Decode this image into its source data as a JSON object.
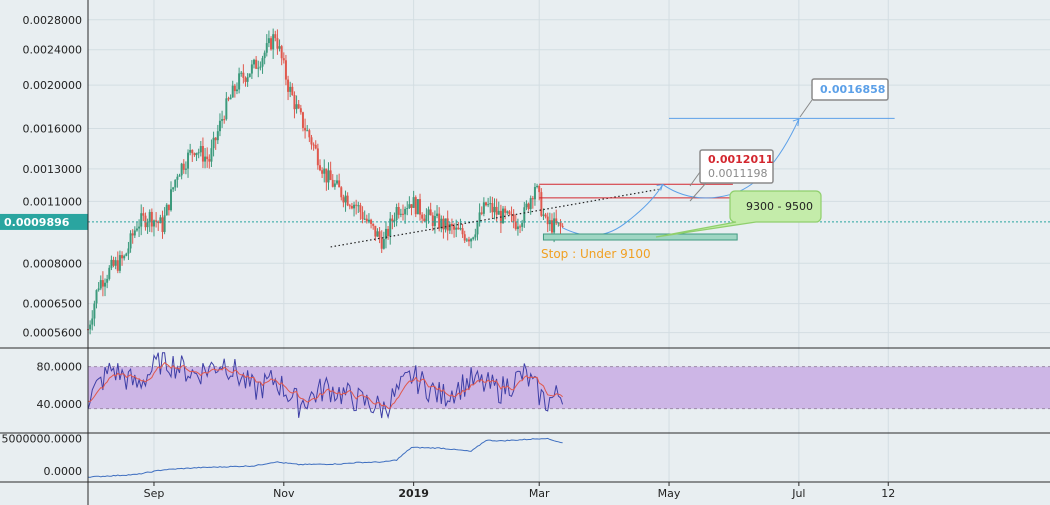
{
  "colors": {
    "background": "#e8eef1",
    "grid": "#d3dde2",
    "axis_text": "#222222",
    "candle_up": "#3c9a7c",
    "candle_down": "#e0584d",
    "price_line": "#2aa5a0",
    "resistance": "#d3272f",
    "target": "#5ca0e8",
    "zone_fill": "#9fd6c3",
    "zone_stroke": "#3f9a80",
    "callout_green": "#c4ecaa",
    "callout_green_stroke": "#8fcf6c",
    "stop_text": "#f0a023",
    "rsi_band": "#cdb6e6",
    "rsi_line": "#3e3fa6",
    "rsi_ma": "#e0584d",
    "obv_line": "#3f6fc0"
  },
  "chart_data": [
    {
      "type": "line",
      "panel": "price",
      "scale": "log",
      "y_ticks": [
        "0.0028000",
        "0.0024000",
        "0.0020000",
        "0.0016000",
        "0.0013000",
        "0.0011000",
        "0.0008000",
        "0.0006500",
        "0.0005600"
      ],
      "y_tick_values": [
        0.0028,
        0.0024,
        0.002,
        0.0016,
        0.0013,
        0.0011,
        0.0008,
        0.00065,
        0.00056
      ],
      "ylim": [
        0.00052,
        0.0031
      ],
      "x_labels": [
        "Sep",
        "Nov",
        "2019",
        "Mar",
        "May",
        "Jul",
        "12"
      ],
      "x_label_dates": [
        "2018-09-01",
        "2018-11-01",
        "2019-01-01",
        "2019-03-01",
        "2019-05-01",
        "2019-07-01",
        "2019-08-12"
      ],
      "xlim": [
        "2018-08-01",
        "2019-10-27"
      ],
      "series": [
        {
          "x": [
            "2018-08-01",
            "2018-08-06",
            "2018-08-12",
            "2018-08-18",
            "2018-08-24",
            "2018-08-30",
            "2018-09-05",
            "2018-09-12",
            "2018-09-20",
            "2018-09-27",
            "2018-10-04",
            "2018-10-11",
            "2018-10-18",
            "2018-10-24",
            "2018-10-28",
            "2018-11-03",
            "2018-11-08",
            "2018-11-14",
            "2018-11-21",
            "2018-11-28",
            "2018-12-05",
            "2018-12-12",
            "2018-12-18",
            "2018-12-24",
            "2018-12-31",
            "2019-01-07",
            "2019-01-14",
            "2019-01-21",
            "2019-01-28",
            "2019-02-04",
            "2019-02-11",
            "2019-02-18",
            "2019-02-22",
            "2019-02-27",
            "2019-03-04",
            "2019-03-08",
            "2019-03-12"
          ],
          "y": [
            0.00057,
            0.00072,
            0.00078,
            0.00082,
            0.00098,
            0.00102,
            0.00097,
            0.00128,
            0.00145,
            0.00136,
            0.00175,
            0.00205,
            0.0022,
            0.0024,
            0.0026,
            0.002,
            0.00172,
            0.0015,
            0.00125,
            0.00115,
            0.00108,
            0.00096,
            0.00089,
            0.00106,
            0.0011,
            0.00102,
            0.00098,
            0.00094,
            0.00092,
            0.00108,
            0.00102,
            0.00099,
            0.00103,
            0.0012,
            0.00098,
            0.00097,
            0.00096
          ]
        }
      ],
      "current_price": "0.0009896",
      "levels": [
        {
          "label": "0.0012011",
          "value": 0.0012011
        },
        {
          "label": "0.0011198",
          "value": 0.0011198
        },
        {
          "label": "0.0016858",
          "value": 0.0016858
        }
      ],
      "annotations": {
        "target_callout": "0.0016858",
        "resistance_callout_1": "0.0012011",
        "resistance_callout_2": "0.0011198",
        "zone_callout": "9300 - 9500",
        "stop_text": "Stop : Under 9100"
      }
    },
    {
      "type": "line",
      "panel": "rsi",
      "y_ticks": [
        "80.0000",
        "40.0000"
      ],
      "y_tick_values": [
        80,
        40
      ],
      "ylim": [
        10,
        100
      ],
      "band": [
        35,
        80
      ],
      "series": [
        {
          "x": [
            "2018-08-01",
            "2018-08-12",
            "2018-08-24",
            "2018-09-05",
            "2018-09-20",
            "2018-10-04",
            "2018-10-18",
            "2018-10-28",
            "2018-11-08",
            "2018-11-21",
            "2018-12-05",
            "2018-12-18",
            "2018-12-31",
            "2019-01-14",
            "2019-01-28",
            "2019-02-11",
            "2019-02-22",
            "2019-03-04",
            "2019-03-12"
          ],
          "y": [
            45,
            78,
            60,
            88,
            72,
            85,
            55,
            66,
            40,
            58,
            45,
            35,
            70,
            48,
            65,
            55,
            72,
            42,
            52
          ]
        }
      ]
    },
    {
      "type": "line",
      "panel": "volume_indicator",
      "y_ticks": [
        "5000000.0000",
        "0.0000"
      ],
      "y_tick_values": [
        5000000,
        0
      ],
      "ylim": [
        -1500000,
        5800000
      ],
      "series": [
        {
          "x": [
            "2018-08-01",
            "2018-08-24",
            "2018-09-05",
            "2018-09-20",
            "2018-10-18",
            "2018-10-28",
            "2018-11-08",
            "2018-11-28",
            "2018-12-05",
            "2018-12-18",
            "2018-12-24",
            "2018-12-31",
            "2019-01-14",
            "2019-01-28",
            "2019-02-04",
            "2019-02-11",
            "2019-02-22",
            "2019-03-04",
            "2019-03-12"
          ],
          "y": [
            -900000,
            -500000,
            200000,
            500000,
            800000,
            1400000,
            1000000,
            1100000,
            1300000,
            1400000,
            1700000,
            3600000,
            3500000,
            3000000,
            4700000,
            4600000,
            4800000,
            5000000,
            4300000
          ]
        }
      ]
    }
  ]
}
